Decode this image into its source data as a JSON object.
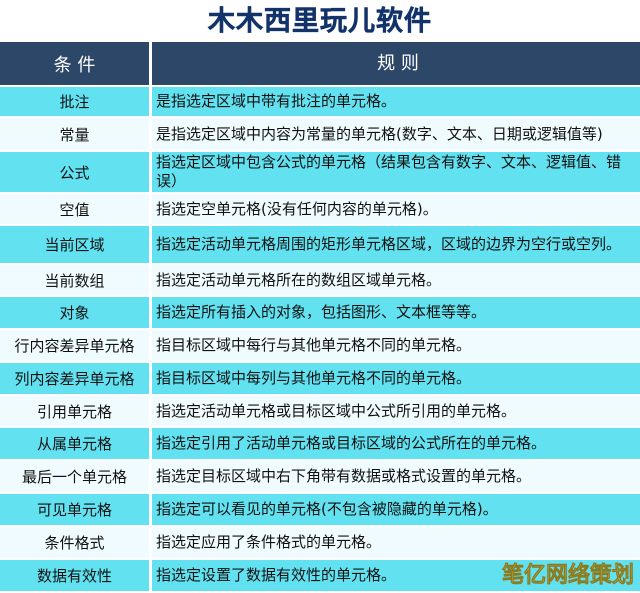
{
  "title": "木木西里玩儿软件",
  "table": {
    "header": [
      "条 件",
      "规 则"
    ],
    "rows": [
      [
        "批注",
        "是指选定区域中带有批注的单元格。"
      ],
      [
        "常量",
        "是指选定区域中内容为常量的单元格(数字、文本、日期或逻辑值等)"
      ],
      [
        "公式",
        "指选定区域中包含公式的单元格（结果包含有数字、文本、逻辑值、错误）"
      ],
      [
        "空值",
        "指选定空单元格(没有任何内容的单元格)。"
      ],
      [
        "当前区域",
        "指选定活动单元格周围的矩形单元格区域，区域的边界为空行或空列。"
      ],
      [
        "当前数组",
        "指选定活动单元格所在的数组区域单元格。"
      ],
      [
        "对象",
        "指选定所有插入的对象，包括图形、文本框等等。"
      ],
      [
        "行内容差异单元格",
        "指目标区域中每行与其他单元格不同的单元格。"
      ],
      [
        "列内容差异单元格",
        "指目标区域中每列与其他单元格不同的单元格。"
      ],
      [
        "引用单元格",
        "指选定活动单元格或目标区域中公式所引用的单元格。"
      ],
      [
        "从属单元格",
        "指选定引用了活动单元格或目标区域的公式所在的单元格。"
      ],
      [
        "最后一个单元格",
        "指选定目标区域中右下角带有数据或格式设置的单元格。"
      ],
      [
        "可见单元格",
        "指选定可以看见的单元格(不包含被隐藏的单元格)。"
      ],
      [
        "条件格式",
        "指选定应用了条件格式的单元格。"
      ],
      [
        "数据有效性",
        "指选定设置了数据有效性的单元格。"
      ]
    ]
  },
  "watermark": "笔亿网络策划"
}
